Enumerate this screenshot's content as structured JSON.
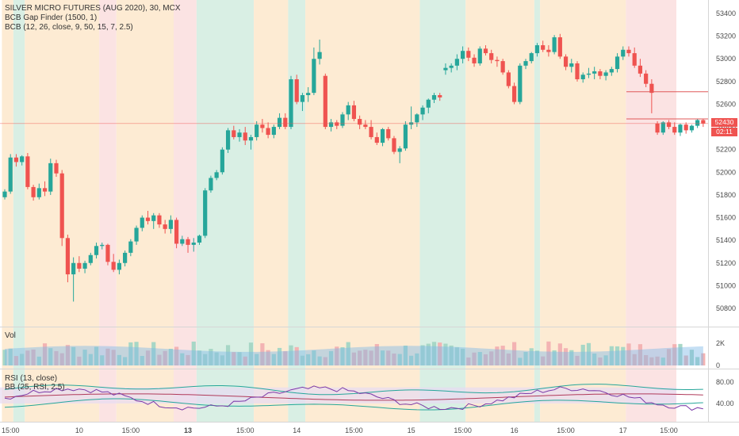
{
  "chart_data": {
    "type": "candlestick",
    "title": "SILVER MICRO FUTURES (AUG 2020), 30, MCX",
    "indicators": [
      "BCB Gap Finder (1500, 1)",
      "BCB (12, 26, close, 9, 50, 15, 7, 2.5)"
    ],
    "y_ticks": [
      53400,
      53200,
      53000,
      52800,
      52600,
      52400,
      52200,
      52000,
      51800,
      51600,
      51400,
      51200,
      51000,
      50800
    ],
    "ylim": [
      50600,
      53500
    ],
    "x_ticks": [
      "15:00",
      "10",
      "15:00",
      "13",
      "15:00",
      "14",
      "15:00",
      "15",
      "15:00",
      "16",
      "15:00",
      "17",
      "15:00"
    ],
    "x_tick_bold": [
      false,
      false,
      false,
      true,
      false,
      false,
      false,
      false,
      false,
      false,
      false,
      false,
      false
    ],
    "last_price": "52430",
    "countdown": "02:11",
    "gap_lines": [
      {
        "from_bar": 109,
        "price": 52710
      },
      {
        "from_bar": 109,
        "price": 52470
      }
    ],
    "background_zones": [
      {
        "from_bar": 0,
        "to_bar": 2,
        "color": "#fdebd3"
      },
      {
        "from_bar": 2,
        "to_bar": 4,
        "color": "#d9efe4"
      },
      {
        "from_bar": 4,
        "to_bar": 17,
        "color": "#fdebd3"
      },
      {
        "from_bar": 17,
        "to_bar": 20,
        "color": "#fbe3e3"
      },
      {
        "from_bar": 20,
        "to_bar": 30,
        "color": "#fdebd3"
      },
      {
        "from_bar": 30,
        "to_bar": 34,
        "color": "#fbe3e3"
      },
      {
        "from_bar": 34,
        "to_bar": 44,
        "color": "#d9efe4"
      },
      {
        "from_bar": 44,
        "to_bar": 50,
        "color": "#fdebd3"
      },
      {
        "from_bar": 50,
        "to_bar": 53,
        "color": "#d9efe4"
      },
      {
        "from_bar": 53,
        "to_bar": 73,
        "color": "#fdebd3"
      },
      {
        "from_bar": 73,
        "to_bar": 81,
        "color": "#d9efe4"
      },
      {
        "from_bar": 81,
        "to_bar": 93,
        "color": "#fdebd3"
      },
      {
        "from_bar": 93,
        "to_bar": 94,
        "color": "#d9efe4"
      },
      {
        "from_bar": 94,
        "to_bar": 109,
        "color": "#fdebd3"
      },
      {
        "from_bar": 109,
        "to_bar": 118,
        "color": "#fbe3e3"
      }
    ],
    "candles": [
      [
        51780,
        51850,
        51760,
        51830
      ],
      [
        51830,
        52160,
        51810,
        52130
      ],
      [
        52130,
        52160,
        52050,
        52090
      ],
      [
        52090,
        52150,
        52060,
        52140
      ],
      [
        52140,
        52170,
        51850,
        51870
      ],
      [
        51870,
        51890,
        51750,
        51780
      ],
      [
        51780,
        51900,
        51760,
        51860
      ],
      [
        51860,
        51920,
        51790,
        51830
      ],
      [
        51830,
        52120,
        51800,
        52080
      ],
      [
        52080,
        52110,
        51960,
        51990
      ],
      [
        51990,
        52020,
        51350,
        51420
      ],
      [
        51420,
        51450,
        51030,
        51100
      ],
      [
        51100,
        51250,
        50860,
        51200
      ],
      [
        51200,
        51260,
        51120,
        51150
      ],
      [
        51150,
        51220,
        51110,
        51200
      ],
      [
        51200,
        51290,
        51180,
        51270
      ],
      [
        51270,
        51380,
        51240,
        51350
      ],
      [
        51350,
        51380,
        51320,
        51360
      ],
      [
        51360,
        51370,
        51180,
        51210
      ],
      [
        51210,
        51280,
        51120,
        51140
      ],
      [
        51140,
        51230,
        51100,
        51200
      ],
      [
        51200,
        51310,
        51170,
        51290
      ],
      [
        51290,
        51410,
        51260,
        51390
      ],
      [
        51390,
        51530,
        51360,
        51510
      ],
      [
        51510,
        51620,
        51480,
        51600
      ],
      [
        51600,
        51660,
        51540,
        51570
      ],
      [
        51570,
        51640,
        51500,
        51620
      ],
      [
        51620,
        51640,
        51510,
        51540
      ],
      [
        51540,
        51580,
        51460,
        51500
      ],
      [
        51500,
        51620,
        51460,
        51580
      ],
      [
        51580,
        51600,
        51330,
        51370
      ],
      [
        51370,
        51440,
        51350,
        51410
      ],
      [
        51410,
        51430,
        51290,
        51360
      ],
      [
        51360,
        51420,
        51300,
        51380
      ],
      [
        51380,
        51450,
        51360,
        51440
      ],
      [
        51440,
        51860,
        51420,
        51840
      ],
      [
        51840,
        51970,
        51820,
        51950
      ],
      [
        51950,
        52020,
        51930,
        52000
      ],
      [
        52000,
        52220,
        51980,
        52200
      ],
      [
        52200,
        52390,
        52170,
        52370
      ],
      [
        52370,
        52410,
        52290,
        52310
      ],
      [
        52310,
        52380,
        52270,
        52350
      ],
      [
        52350,
        52400,
        52240,
        52280
      ],
      [
        52280,
        52330,
        52200,
        52310
      ],
      [
        52310,
        52450,
        52280,
        52420
      ],
      [
        52420,
        52470,
        52350,
        52390
      ],
      [
        52390,
        52440,
        52300,
        52330
      ],
      [
        52330,
        52420,
        52300,
        52400
      ],
      [
        52400,
        52520,
        52380,
        52480
      ],
      [
        52480,
        52520,
        52380,
        52400
      ],
      [
        52400,
        52850,
        52380,
        52820
      ],
      [
        52820,
        52860,
        52600,
        52620
      ],
      [
        52620,
        52700,
        52540,
        52680
      ],
      [
        52680,
        52750,
        52620,
        52700
      ],
      [
        52700,
        53100,
        52680,
        53000
      ],
      [
        53000,
        53170,
        52950,
        53060
      ],
      [
        52850,
        52870,
        52380,
        52400
      ],
      [
        52400,
        52470,
        52360,
        52440
      ],
      [
        52440,
        52460,
        52380,
        52410
      ],
      [
        52410,
        52530,
        52390,
        52510
      ],
      [
        52510,
        52620,
        52460,
        52590
      ],
      [
        52590,
        52630,
        52450,
        52470
      ],
      [
        52470,
        52500,
        52380,
        52420
      ],
      [
        52420,
        52460,
        52380,
        52400
      ],
      [
        52400,
        52460,
        52290,
        52310
      ],
      [
        52310,
        52350,
        52240,
        52260
      ],
      [
        52260,
        52390,
        52230,
        52380
      ],
      [
        52380,
        52400,
        52280,
        52300
      ],
      [
        52300,
        52320,
        52160,
        52180
      ],
      [
        52180,
        52230,
        52080,
        52210
      ],
      [
        52210,
        52450,
        52190,
        52420
      ],
      [
        52420,
        52580,
        52380,
        52440
      ],
      [
        52440,
        52520,
        52400,
        52510
      ],
      [
        52510,
        52590,
        52460,
        52570
      ],
      [
        52570,
        52650,
        52520,
        52640
      ],
      [
        52640,
        52700,
        52610,
        52680
      ],
      [
        52680,
        52700,
        52630,
        52660
      ],
      [
        52900,
        52960,
        52860,
        52920
      ],
      [
        52920,
        52960,
        52880,
        52940
      ],
      [
        52940,
        53040,
        52900,
        53000
      ],
      [
        53000,
        53110,
        52960,
        53070
      ],
      [
        53070,
        53100,
        52980,
        53010
      ],
      [
        53010,
        53040,
        52930,
        52960
      ],
      [
        52960,
        53110,
        52940,
        53090
      ],
      [
        53090,
        53120,
        53030,
        53050
      ],
      [
        53050,
        53080,
        52960,
        52990
      ],
      [
        52990,
        53020,
        52930,
        52980
      ],
      [
        52980,
        53000,
        52860,
        52880
      ],
      [
        52880,
        52900,
        52740,
        52760
      ],
      [
        52760,
        52790,
        52600,
        52620
      ],
      [
        52620,
        52960,
        52600,
        52940
      ],
      [
        52940,
        53000,
        52910,
        52980
      ],
      [
        52980,
        53060,
        52960,
        53050
      ],
      [
        53050,
        53140,
        53020,
        53120
      ],
      [
        53120,
        53160,
        53060,
        53080
      ],
      [
        53080,
        53120,
        53020,
        53060
      ],
      [
        53060,
        53210,
        53040,
        53190
      ],
      [
        53190,
        53220,
        53000,
        53020
      ],
      [
        53020,
        53040,
        52900,
        52930
      ],
      [
        52930,
        53000,
        52880,
        52960
      ],
      [
        52960,
        52980,
        52800,
        52820
      ],
      [
        52820,
        52880,
        52790,
        52860
      ],
      [
        52860,
        52920,
        52830,
        52870
      ],
      [
        52870,
        52930,
        52820,
        52890
      ],
      [
        52890,
        52910,
        52820,
        52850
      ],
      [
        52850,
        52900,
        52810,
        52880
      ],
      [
        52880,
        52930,
        52850,
        52910
      ],
      [
        52910,
        53050,
        52880,
        53020
      ],
      [
        53020,
        53110,
        52990,
        53080
      ],
      [
        53080,
        53110,
        53020,
        53050
      ],
      [
        53050,
        53100,
        52920,
        52940
      ],
      [
        52940,
        53000,
        52840,
        52870
      ],
      [
        52870,
        52900,
        52750,
        52780
      ],
      [
        52780,
        52820,
        52520,
        52700
      ],
      [
        52430,
        52450,
        52330,
        52350
      ],
      [
        52350,
        52450,
        52330,
        52440
      ],
      [
        52440,
        52460,
        52380,
        52400
      ],
      [
        52400,
        52440,
        52330,
        52350
      ],
      [
        52350,
        52430,
        52320,
        52420
      ],
      [
        52420,
        52440,
        52340,
        52370
      ],
      [
        52370,
        52420,
        52350,
        52410
      ],
      [
        52410,
        52470,
        52390,
        52460
      ],
      [
        52460,
        52470,
        52400,
        52430
      ]
    ],
    "volume_panel": {
      "label": "Vol",
      "y_ticks": [
        "2K",
        "0"
      ]
    },
    "rsi_panel": {
      "label": "RSI (13, close)",
      "label2": "BB (25, RSI, 2.5)",
      "y_ticks": [
        "80.00",
        "40.00"
      ]
    },
    "colors": {
      "up": "#26a69a",
      "down": "#ef5350",
      "rsi": "#7b3aa8",
      "bb": "#26a69a",
      "rsi_band": "#e7dcf2"
    }
  }
}
